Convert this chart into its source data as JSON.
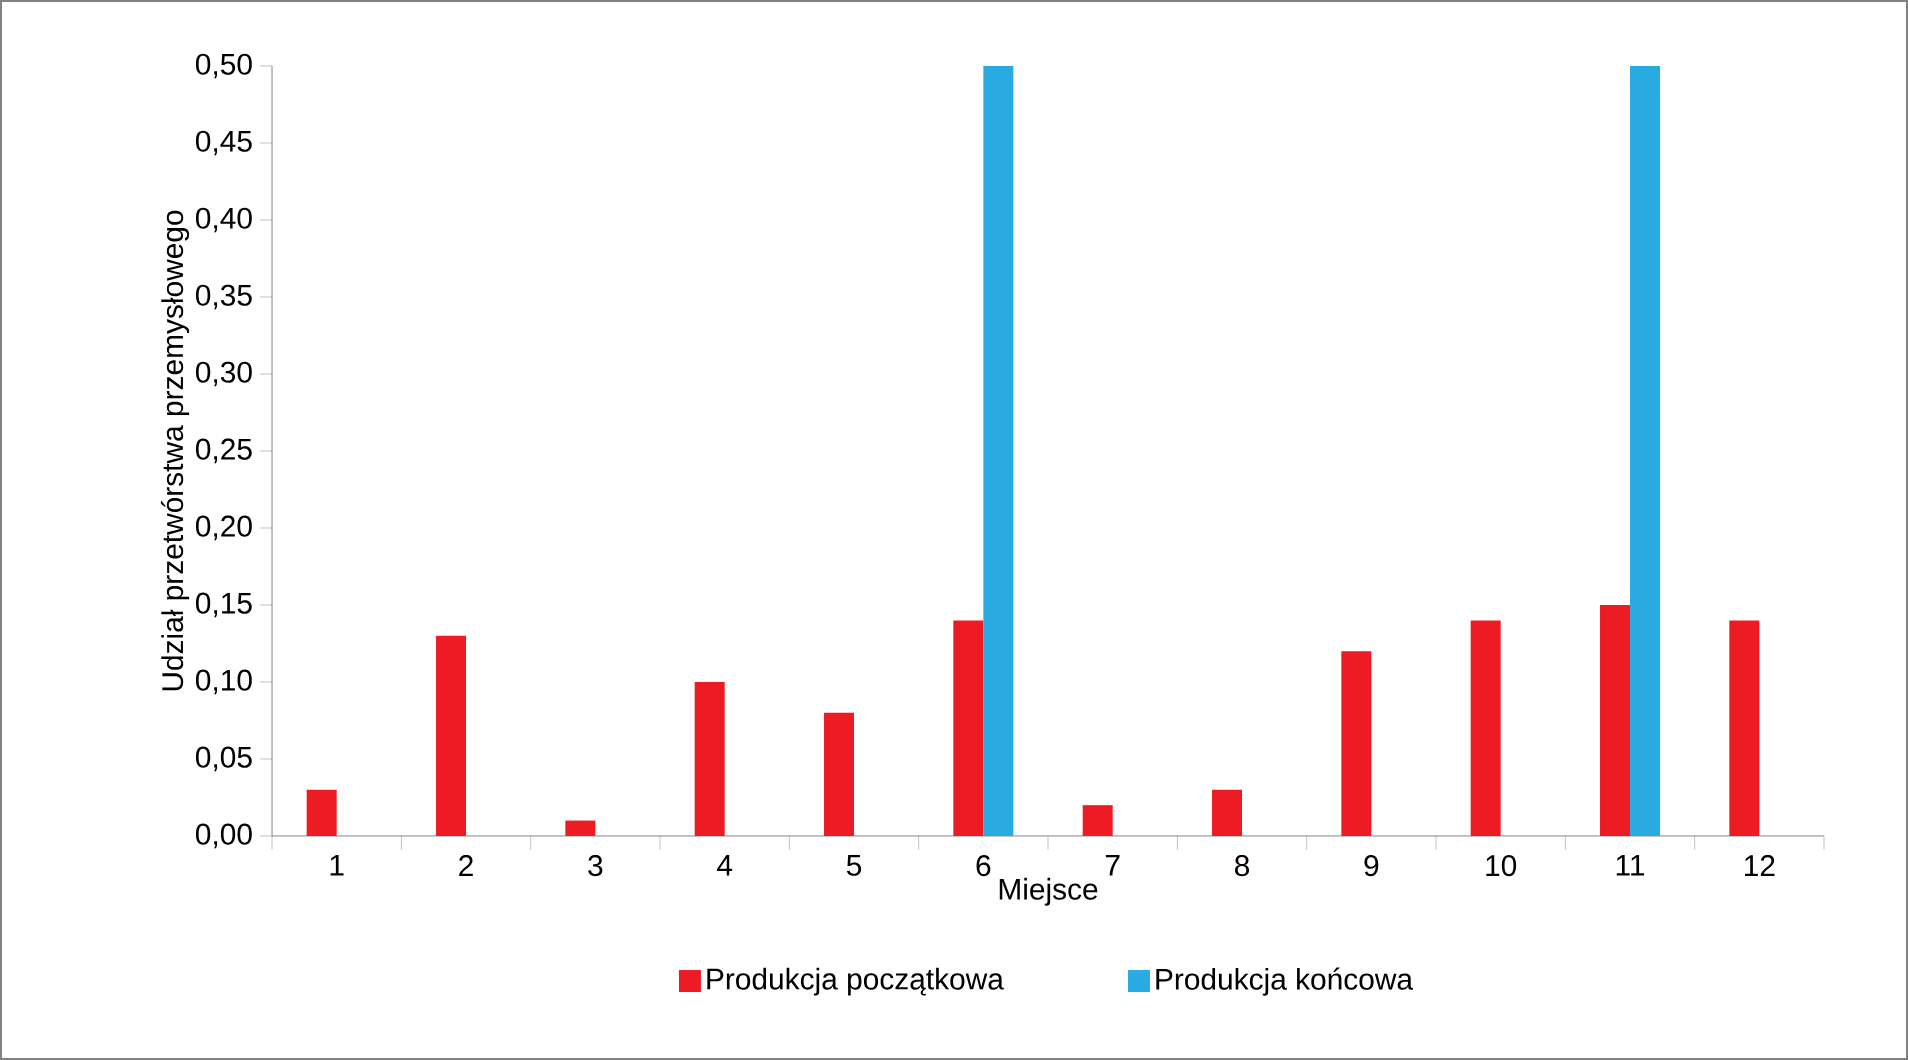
{
  "chart_data": {
    "type": "bar",
    "xlabel": "Miejsce",
    "ylabel": "Udział  przetwórstwa przemysłowego",
    "categories": [
      "1",
      "2",
      "3",
      "4",
      "5",
      "6",
      "7",
      "8",
      "9",
      "10",
      "11",
      "12"
    ],
    "series": [
      {
        "name": "Produkcja początkowa",
        "color": "#ed1c24",
        "values": [
          0.03,
          0.13,
          0.01,
          0.1,
          0.08,
          0.14,
          0.02,
          0.03,
          0.12,
          0.14,
          0.15,
          0.14
        ]
      },
      {
        "name": "Produkcja końcowa",
        "color": "#29abe2",
        "values": [
          null,
          null,
          null,
          null,
          null,
          0.5,
          null,
          null,
          null,
          null,
          0.5,
          null
        ]
      }
    ],
    "ylim": [
      0,
      0.5
    ],
    "yticks": [
      {
        "value": 0,
        "label": "0,00"
      },
      {
        "value": 0.05,
        "label": "0,05"
      },
      {
        "value": 0.1,
        "label": "0,10"
      },
      {
        "value": 0.15,
        "label": "0,15"
      },
      {
        "value": 0.2,
        "label": "0,20"
      },
      {
        "value": 0.25,
        "label": "0,25"
      },
      {
        "value": 0.3,
        "label": "0,30"
      },
      {
        "value": 0.35,
        "label": "0,35"
      },
      {
        "value": 0.4,
        "label": "0,40"
      },
      {
        "value": 0.45,
        "label": "0,45"
      },
      {
        "value": 0.5,
        "label": "0,50"
      }
    ],
    "legend": "bottom"
  }
}
